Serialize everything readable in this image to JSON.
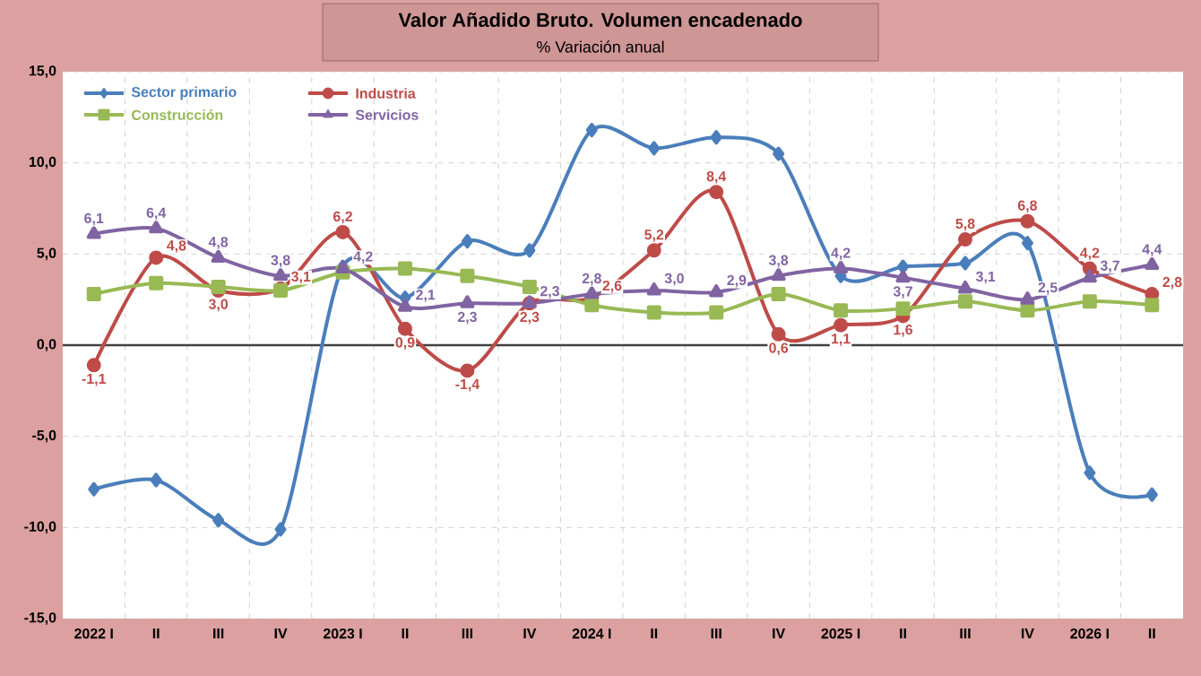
{
  "chart_data": {
    "type": "line",
    "title": "Valor Añadido Bruto. Volumen encadenado",
    "subtitle": "% Variación anual",
    "categories": [
      "2022 I",
      "II",
      "III",
      "IV",
      "2023 I",
      "II",
      "III",
      "IV",
      "2024 I",
      "II",
      "III",
      "IV",
      "2025 I",
      "II",
      "III",
      "IV",
      "2026 I",
      "II"
    ],
    "ylim": [
      -15,
      15
    ],
    "yticks": [
      {
        "value": -15,
        "label": "-15,0"
      },
      {
        "value": -10,
        "label": "-10,0"
      },
      {
        "value": -5,
        "label": "-5,0"
      },
      {
        "value": 0,
        "label": "0,0"
      },
      {
        "value": 5,
        "label": "5,0"
      },
      {
        "value": 10,
        "label": "10,0"
      },
      {
        "value": 15,
        "label": "15,0"
      }
    ],
    "grid": true,
    "legend": "top left",
    "line_style": "solid",
    "ref_lines": [
      {
        "axis": "y",
        "value": 0,
        "color": "#404040"
      }
    ],
    "series": [
      {
        "name": "Sector primario",
        "color": "#4a7ebb",
        "marker": "diamond",
        "values": [
          -7.9,
          -7.4,
          -9.6,
          -10.1,
          4.3,
          2.6,
          5.7,
          5.2,
          11.8,
          10.8,
          11.4,
          10.5,
          3.8,
          4.3,
          4.5,
          5.6,
          -7.0,
          -8.2
        ]
      },
      {
        "name": "Industria",
        "color": "#be4b48",
        "marker": "circle",
        "values": [
          -1.1,
          4.8,
          3.0,
          3.1,
          6.2,
          0.9,
          -1.4,
          2.3,
          2.6,
          5.2,
          8.4,
          0.6,
          1.1,
          1.6,
          5.8,
          6.8,
          4.2,
          2.8
        ],
        "value_labels": [
          "-1,1",
          "4,8",
          "3,0",
          "3,1",
          "6,2",
          "0,9",
          "-1,4",
          "2,3",
          "2,6",
          "5,2",
          "8,4",
          "0,6",
          "1,1",
          "1,6",
          "5,8",
          "6,8",
          "4,2",
          "2,8"
        ]
      },
      {
        "name": "Construcción",
        "color": "#98b954",
        "marker": "square",
        "values": [
          2.8,
          3.4,
          3.2,
          3.0,
          4.0,
          4.2,
          3.8,
          3.2,
          2.2,
          1.8,
          1.8,
          2.8,
          1.9,
          2.0,
          2.4,
          1.9,
          2.4,
          2.2
        ]
      },
      {
        "name": "Servicios",
        "color": "#8064a2",
        "marker": "triangle",
        "values": [
          6.1,
          6.4,
          4.8,
          3.8,
          4.2,
          2.1,
          2.3,
          2.3,
          2.8,
          3.0,
          2.9,
          3.8,
          4.2,
          3.7,
          3.1,
          2.5,
          3.7,
          4.4
        ],
        "value_labels": [
          "6,1",
          "6,4",
          "4,8",
          "3,8",
          "4,2",
          "2,1",
          "2,3",
          "2,3",
          "2,8",
          "3,0",
          "2,9",
          "3,8",
          "4,2",
          "3,7",
          "3,1",
          "2,5",
          "3,7",
          "4,4"
        ]
      }
    ]
  }
}
